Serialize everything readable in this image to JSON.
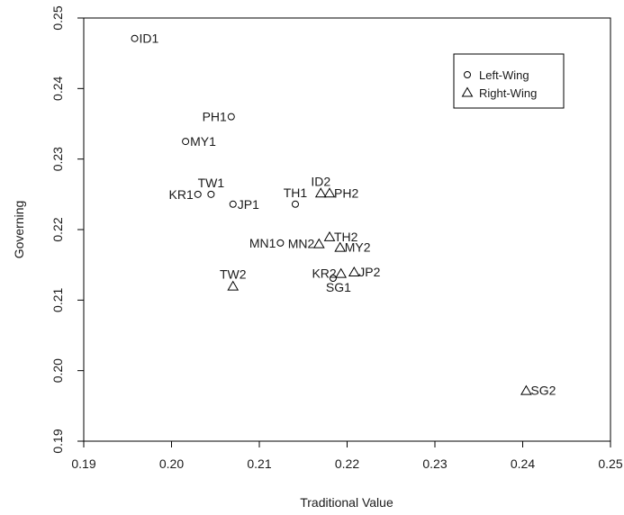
{
  "chart_data": {
    "type": "scatter",
    "title": "",
    "xlabel": "Traditional Value",
    "ylabel": "Governing",
    "xlim": [
      0.19,
      0.25
    ],
    "ylim": [
      0.19,
      0.25
    ],
    "xticks": [
      0.19,
      0.2,
      0.21,
      0.22,
      0.23,
      0.24,
      0.25
    ],
    "yticks": [
      0.19,
      0.2,
      0.21,
      0.22,
      0.23,
      0.24,
      0.25
    ],
    "xtick_labels": [
      "0.19",
      "0.20",
      "0.21",
      "0.22",
      "0.23",
      "0.24",
      "0.25"
    ],
    "ytick_labels": [
      "0.19",
      "0.20",
      "0.21",
      "0.22",
      "0.23",
      "0.24",
      "0.25"
    ],
    "grid": false,
    "legend": {
      "placement": "top-right",
      "entries": [
        {
          "label": "Left-Wing",
          "marker": "circle"
        },
        {
          "label": "Right-Wing",
          "marker": "triangle"
        }
      ]
    },
    "series": [
      {
        "name": "Left-Wing",
        "marker": "circle",
        "points": [
          {
            "label": "ID1",
            "x": 0.1958,
            "y": 0.2471,
            "label_side": "right"
          },
          {
            "label": "PH1",
            "x": 0.2068,
            "y": 0.236,
            "label_side": "left"
          },
          {
            "label": "MY1",
            "x": 0.2016,
            "y": 0.2325,
            "label_side": "right"
          },
          {
            "label": "TW1",
            "x": 0.2045,
            "y": 0.225,
            "label_side": "above"
          },
          {
            "label": "KR1",
            "x": 0.203,
            "y": 0.225,
            "label_side": "left"
          },
          {
            "label": "JP1",
            "x": 0.207,
            "y": 0.2236,
            "label_side": "right"
          },
          {
            "label": "TH1",
            "x": 0.2141,
            "y": 0.2236,
            "label_side": "above"
          },
          {
            "label": "MN1",
            "x": 0.2124,
            "y": 0.2181,
            "label_side": "left"
          },
          {
            "label": "SG1",
            "x": 0.2184,
            "y": 0.2131,
            "label_side": "below"
          }
        ]
      },
      {
        "name": "Right-Wing",
        "marker": "triangle",
        "points": [
          {
            "label": "ID2",
            "x": 0.217,
            "y": 0.2252,
            "label_side": "above"
          },
          {
            "label": "PH2",
            "x": 0.218,
            "y": 0.2252,
            "label_side": "right"
          },
          {
            "label": "MN2",
            "x": 0.2168,
            "y": 0.218,
            "label_side": "left"
          },
          {
            "label": "TH2",
            "x": 0.218,
            "y": 0.219,
            "label_side": "right"
          },
          {
            "label": "MY2",
            "x": 0.2192,
            "y": 0.2175,
            "label_side": "right"
          },
          {
            "label": "KR2",
            "x": 0.2193,
            "y": 0.2138,
            "label_side": "left"
          },
          {
            "label": "JP2",
            "x": 0.2208,
            "y": 0.214,
            "label_side": "right"
          },
          {
            "label": "TW2",
            "x": 0.207,
            "y": 0.212,
            "label_side": "above"
          },
          {
            "label": "SG2",
            "x": 0.2404,
            "y": 0.1972,
            "label_side": "right"
          }
        ]
      }
    ]
  }
}
